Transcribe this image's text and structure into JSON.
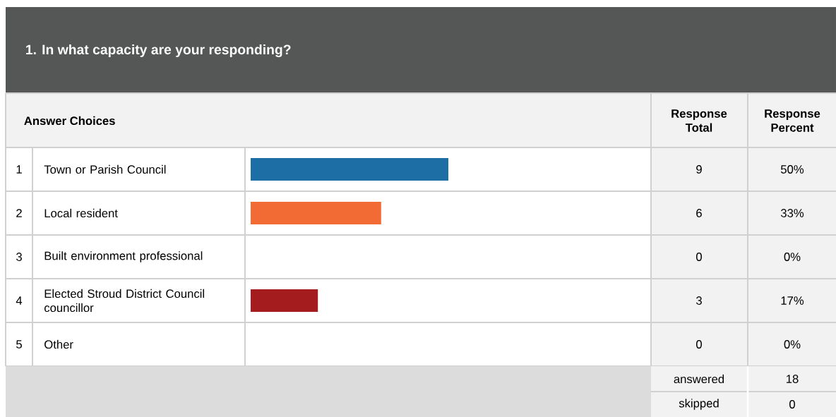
{
  "chart_data": {
    "type": "bar",
    "orientation": "horizontal",
    "title": "1. In what capacity are your responding?",
    "categories": [
      "Town or Parish Council",
      "Local resident",
      "Built environment professional",
      "Elected Stroud District Council councillor",
      "Other"
    ],
    "values": [
      50,
      33,
      0,
      17,
      0
    ],
    "colors": [
      "#1c6ea4",
      "#f26b35",
      "#bbbbbb",
      "#a51c1f",
      "#bbbbbb"
    ],
    "value_labels": [
      "50%",
      "33%",
      "0%",
      "17%",
      "0%"
    ],
    "annotations": [
      "Answer Choices",
      "Response Total",
      "Response Percent",
      "1",
      "2",
      "3",
      "4",
      "5",
      "answered",
      "18",
      "skipped",
      "0",
      "9",
      "6",
      "0",
      "3",
      "0"
    ]
  }
}
